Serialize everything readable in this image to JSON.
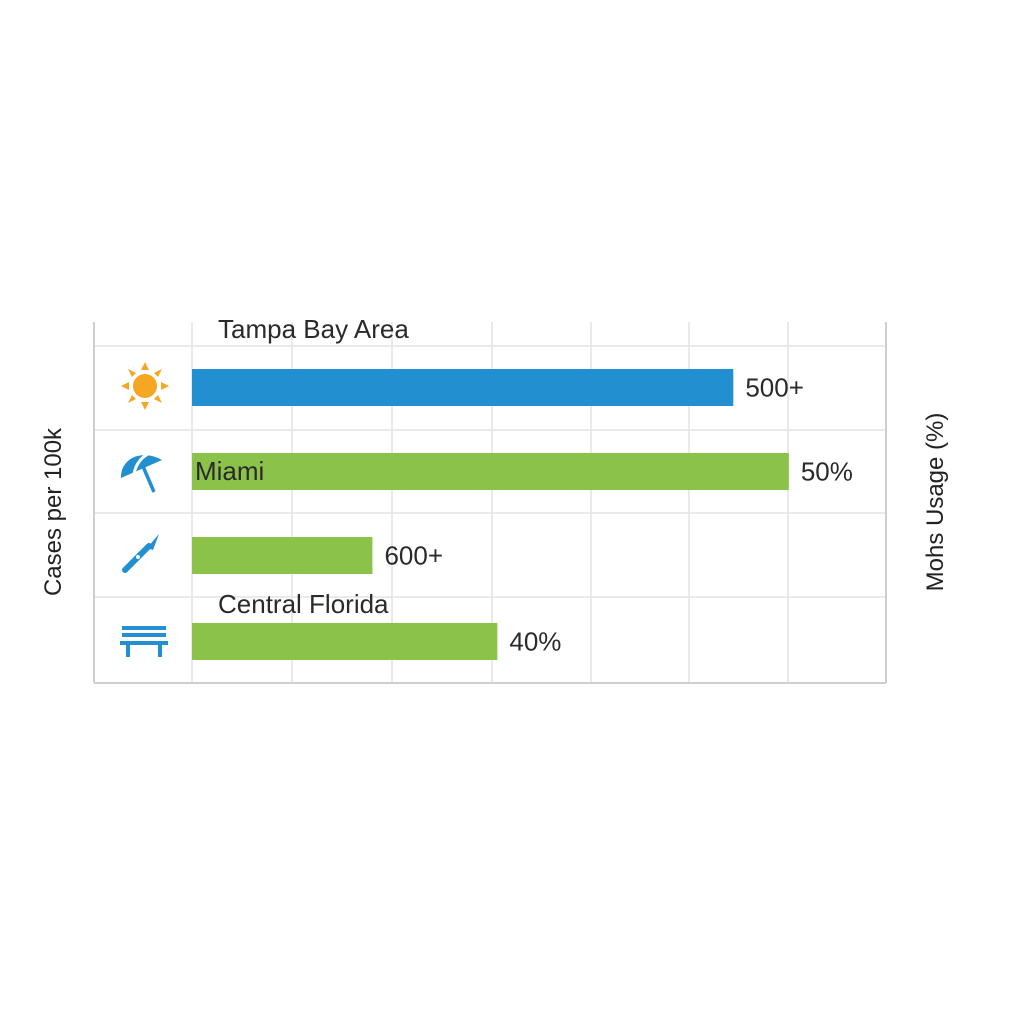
{
  "chart_data": {
    "type": "bar",
    "orientation": "horizontal",
    "title": "",
    "ylabel": "Cases per 100k",
    "y2label": "Mohs Usage (%)",
    "grid": true,
    "categories": [
      "Tampa Bay Area",
      "Miami",
      "",
      "Central Florida"
    ],
    "bars": [
      {
        "icon": "sun-icon",
        "category_label": "Tampa Bay Area",
        "value_label": "500+",
        "color": "#2290D0",
        "bar_fraction": 0.78
      },
      {
        "icon": "beach-umbrella-icon",
        "category_label": "Miami",
        "value_label": "50%",
        "color": "#8BC34A",
        "bar_fraction": 0.86
      },
      {
        "icon": "scalpel-icon",
        "category_label": "",
        "value_label": "600+",
        "color": "#8BC34A",
        "bar_fraction": 0.26
      },
      {
        "icon": "bench-icon",
        "category_label": "Central Florida",
        "value_label": "40%",
        "color": "#8BC34A",
        "bar_fraction": 0.44
      }
    ]
  }
}
